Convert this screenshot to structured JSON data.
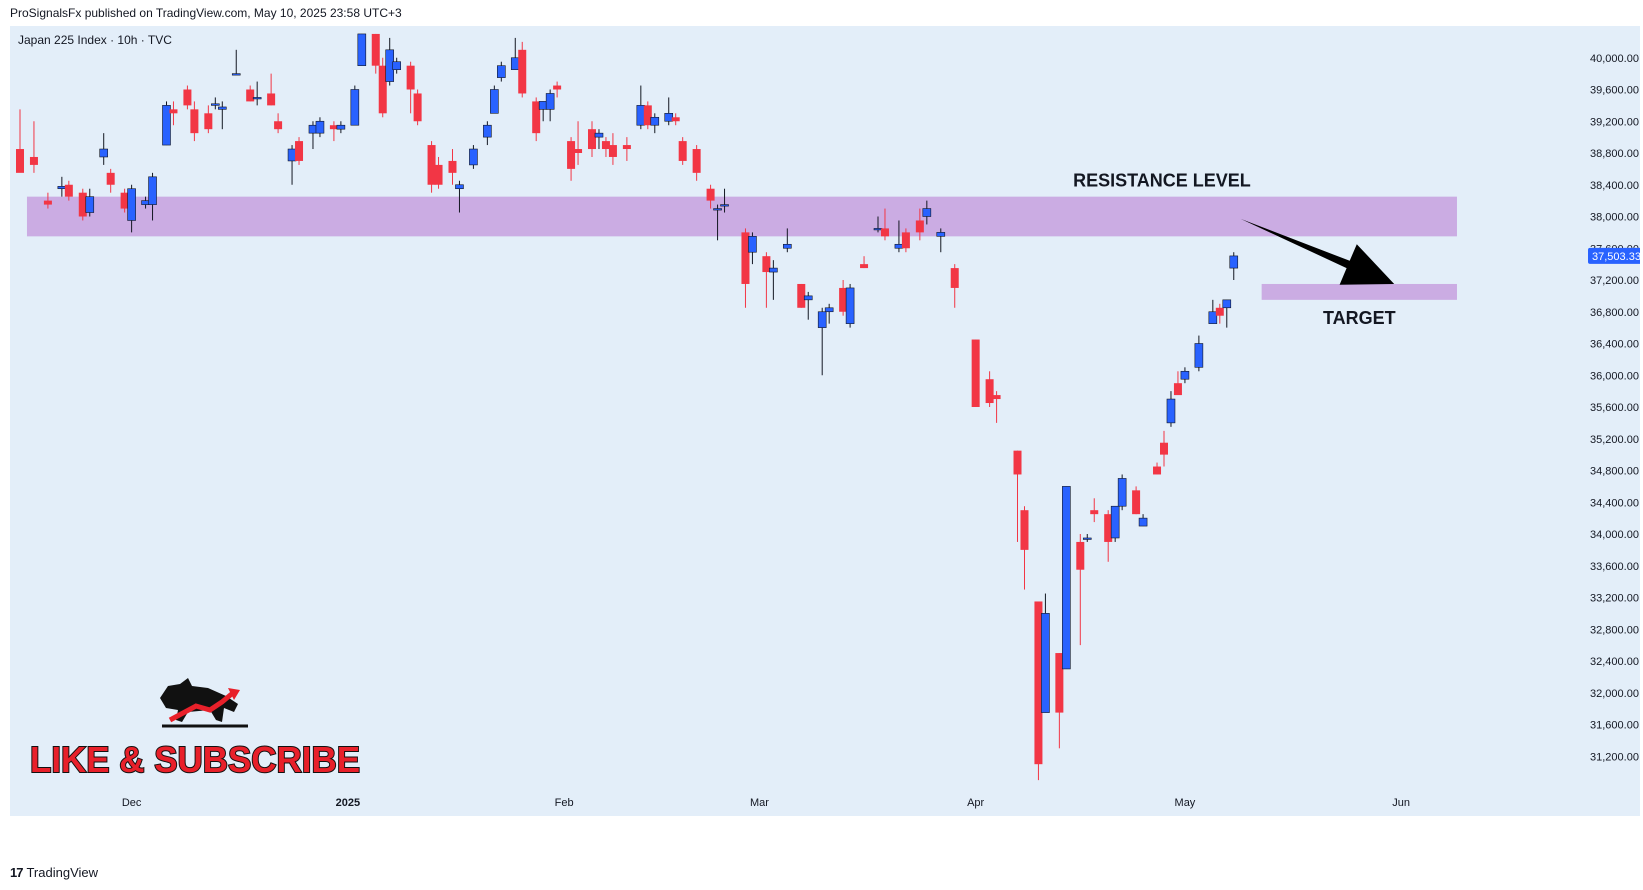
{
  "header": {
    "publisher_line": "ProSignalsFx published on TradingView.com, May 10, 2025 23:58 UTC+3"
  },
  "footer": {
    "brand": "TradingView",
    "brand_icon": "tradingview-logo-icon"
  },
  "colors": {
    "background": "#e3eef9",
    "up": "#2962ff",
    "down": "#f23645",
    "zone": "#c8a4e0",
    "price_tag": "#2962ff",
    "arrow": "#000000",
    "subscribe_red": "#e8202a"
  },
  "chart_data": {
    "type": "candlestick",
    "symbol_label": "Japan 225 Index · 10h · TVC",
    "ylim": [
      30800,
      40400
    ],
    "y_ticks": [
      31200,
      31600,
      32000,
      32400,
      32800,
      33200,
      33600,
      34000,
      34400,
      34800,
      35200,
      35600,
      36000,
      36400,
      36800,
      37200,
      37600,
      38000,
      38400,
      38800,
      39200,
      39600,
      40000
    ],
    "y_tick_labels": [
      "31,200.00",
      "31,600.00",
      "32,000.00",
      "32,400.00",
      "32,800.00",
      "33,200.00",
      "33,600.00",
      "34,000.00",
      "34,400.00",
      "34,800.00",
      "35,200.00",
      "35,600.00",
      "36,000.00",
      "36,400.00",
      "36,800.00",
      "37,200.00",
      "37,600.00",
      "38,000.00",
      "38,400.00",
      "38,800.00",
      "39,200.00",
      "39,600.00",
      "40,000.00"
    ],
    "x_range": [
      "2024-11-15",
      "2025-06-08"
    ],
    "x_ticks": [
      {
        "date": "2024-12-01",
        "label": "Dec"
      },
      {
        "date": "2025-01-01",
        "label": "2025"
      },
      {
        "date": "2025-02-01",
        "label": "Feb"
      },
      {
        "date": "2025-03-01",
        "label": "Mar"
      },
      {
        "date": "2025-04-01",
        "label": "Apr"
      },
      {
        "date": "2025-05-01",
        "label": "May"
      },
      {
        "date": "2025-06-01",
        "label": "Jun"
      }
    ],
    "current_price": 37503.33,
    "current_price_label": "37,503.33",
    "candles": [
      {
        "date": "2024-11-15",
        "o": 38850,
        "h": 39350,
        "l": 38600,
        "c": 38550
      },
      {
        "date": "2024-11-17",
        "o": 38750,
        "h": 39200,
        "l": 38550,
        "c": 38650
      },
      {
        "date": "2024-11-19",
        "o": 38200,
        "h": 38300,
        "l": 38100,
        "c": 38150
      },
      {
        "date": "2024-11-21",
        "o": 38350,
        "h": 38500,
        "l": 38250,
        "c": 38380
      },
      {
        "date": "2024-11-22",
        "o": 38400,
        "h": 38450,
        "l": 38200,
        "c": 38250
      },
      {
        "date": "2024-11-24",
        "o": 38300,
        "h": 38350,
        "l": 37950,
        "c": 38000
      },
      {
        "date": "2024-11-25",
        "o": 38050,
        "h": 38350,
        "l": 38000,
        "c": 38250
      },
      {
        "date": "2024-11-27",
        "o": 38750,
        "h": 39050,
        "l": 38650,
        "c": 38850
      },
      {
        "date": "2024-11-28",
        "o": 38550,
        "h": 38600,
        "l": 38300,
        "c": 38400
      },
      {
        "date": "2024-11-30",
        "o": 38300,
        "h": 38350,
        "l": 38050,
        "c": 38100
      },
      {
        "date": "2024-12-01",
        "o": 37950,
        "h": 38400,
        "l": 37800,
        "c": 38350
      },
      {
        "date": "2024-12-03",
        "o": 38150,
        "h": 38250,
        "l": 38100,
        "c": 38200
      },
      {
        "date": "2024-12-04",
        "o": 38150,
        "h": 38550,
        "l": 37950,
        "c": 38500
      },
      {
        "date": "2024-12-06",
        "o": 38900,
        "h": 39450,
        "l": 38900,
        "c": 39400
      },
      {
        "date": "2024-12-07",
        "o": 39350,
        "h": 39450,
        "l": 39150,
        "c": 39300
      },
      {
        "date": "2024-12-09",
        "o": 39600,
        "h": 39650,
        "l": 39350,
        "c": 39400
      },
      {
        "date": "2024-12-10",
        "o": 39350,
        "h": 39450,
        "l": 38950,
        "c": 39050
      },
      {
        "date": "2024-12-12",
        "o": 39300,
        "h": 39400,
        "l": 39050,
        "c": 39100
      },
      {
        "date": "2024-12-13",
        "o": 39400,
        "h": 39500,
        "l": 39350,
        "c": 39420
      },
      {
        "date": "2024-12-14",
        "o": 39350,
        "h": 39450,
        "l": 39100,
        "c": 39380
      },
      {
        "date": "2024-12-16",
        "o": 39800,
        "h": 40100,
        "l": 39800,
        "c": 39800
      },
      {
        "date": "2024-12-18",
        "o": 39600,
        "h": 39650,
        "l": 39450,
        "c": 39450
      },
      {
        "date": "2024-12-19",
        "o": 39500,
        "h": 39700,
        "l": 39400,
        "c": 39500
      },
      {
        "date": "2024-12-21",
        "o": 39550,
        "h": 39800,
        "l": 39400,
        "c": 39400
      },
      {
        "date": "2024-12-22",
        "o": 39200,
        "h": 39300,
        "l": 39050,
        "c": 39100
      },
      {
        "date": "2024-12-24",
        "o": 38700,
        "h": 38900,
        "l": 38400,
        "c": 38850
      },
      {
        "date": "2024-12-25",
        "o": 38950,
        "h": 39000,
        "l": 38650,
        "c": 38700
      },
      {
        "date": "2024-12-27",
        "o": 39050,
        "h": 39200,
        "l": 38850,
        "c": 39150
      },
      {
        "date": "2024-12-28",
        "o": 39050,
        "h": 39250,
        "l": 39000,
        "c": 39200
      },
      {
        "date": "2024-12-30",
        "o": 39150,
        "h": 39200,
        "l": 38950,
        "c": 39100
      },
      {
        "date": "2024-12-31",
        "o": 39100,
        "h": 39200,
        "l": 39050,
        "c": 39150
      },
      {
        "date": "2025-01-02",
        "o": 39150,
        "h": 39650,
        "l": 39150,
        "c": 39600
      },
      {
        "date": "2025-01-03",
        "o": 39900,
        "h": 40300,
        "l": 39900,
        "c": 40300
      },
      {
        "date": "2025-01-05",
        "o": 40300,
        "h": 40300,
        "l": 39800,
        "c": 39900
      },
      {
        "date": "2025-01-06",
        "o": 39900,
        "h": 40000,
        "l": 39250,
        "c": 39300
      },
      {
        "date": "2025-01-07",
        "o": 39700,
        "h": 40250,
        "l": 39650,
        "c": 40100
      },
      {
        "date": "2025-01-08",
        "o": 39850,
        "h": 40000,
        "l": 39800,
        "c": 39950
      },
      {
        "date": "2025-01-10",
        "o": 39900,
        "h": 39950,
        "l": 39300,
        "c": 39600
      },
      {
        "date": "2025-01-11",
        "o": 39550,
        "h": 39600,
        "l": 39150,
        "c": 39200
      },
      {
        "date": "2025-01-13",
        "o": 38900,
        "h": 38950,
        "l": 38300,
        "c": 38400
      },
      {
        "date": "2025-01-14",
        "o": 38650,
        "h": 38750,
        "l": 38350,
        "c": 38400
      },
      {
        "date": "2025-01-16",
        "o": 38700,
        "h": 38850,
        "l": 38400,
        "c": 38550
      },
      {
        "date": "2025-01-17",
        "o": 38350,
        "h": 38450,
        "l": 38050,
        "c": 38400
      },
      {
        "date": "2025-01-19",
        "o": 38650,
        "h": 38900,
        "l": 38600,
        "c": 38850
      },
      {
        "date": "2025-01-21",
        "o": 39000,
        "h": 39200,
        "l": 38900,
        "c": 39150
      },
      {
        "date": "2025-01-22",
        "o": 39300,
        "h": 39650,
        "l": 39300,
        "c": 39600
      },
      {
        "date": "2025-01-23",
        "o": 39750,
        "h": 39950,
        "l": 39700,
        "c": 39900
      },
      {
        "date": "2025-01-25",
        "o": 39850,
        "h": 40250,
        "l": 39850,
        "c": 40000
      },
      {
        "date": "2025-01-26",
        "o": 40100,
        "h": 40200,
        "l": 39500,
        "c": 39550
      },
      {
        "date": "2025-01-28",
        "o": 39450,
        "h": 39500,
        "l": 38950,
        "c": 39050
      },
      {
        "date": "2025-01-29",
        "o": 39350,
        "h": 39450,
        "l": 39200,
        "c": 39450
      },
      {
        "date": "2025-01-30",
        "o": 39350,
        "h": 39600,
        "l": 39200,
        "c": 39550
      },
      {
        "date": "2025-01-31",
        "o": 39650,
        "h": 39700,
        "l": 39500,
        "c": 39600
      },
      {
        "date": "2025-02-02",
        "o": 38950,
        "h": 39000,
        "l": 38450,
        "c": 38600
      },
      {
        "date": "2025-02-03",
        "o": 38850,
        "h": 39200,
        "l": 38650,
        "c": 38800
      },
      {
        "date": "2025-02-05",
        "o": 39100,
        "h": 39200,
        "l": 38750,
        "c": 38850
      },
      {
        "date": "2025-02-06",
        "o": 39000,
        "h": 39100,
        "l": 38850,
        "c": 39050
      },
      {
        "date": "2025-02-07",
        "o": 38950,
        "h": 39000,
        "l": 38750,
        "c": 38850
      },
      {
        "date": "2025-02-08",
        "o": 38900,
        "h": 39050,
        "l": 38650,
        "c": 38750
      },
      {
        "date": "2025-02-10",
        "o": 38900,
        "h": 39000,
        "l": 38700,
        "c": 38850
      },
      {
        "date": "2025-02-12",
        "o": 39150,
        "h": 39650,
        "l": 39100,
        "c": 39400
      },
      {
        "date": "2025-02-13",
        "o": 39400,
        "h": 39450,
        "l": 39100,
        "c": 39150
      },
      {
        "date": "2025-02-14",
        "o": 39150,
        "h": 39300,
        "l": 39050,
        "c": 39250
      },
      {
        "date": "2025-02-16",
        "o": 39200,
        "h": 39500,
        "l": 39150,
        "c": 39300
      },
      {
        "date": "2025-02-17",
        "o": 39250,
        "h": 39300,
        "l": 39150,
        "c": 39200
      },
      {
        "date": "2025-02-18",
        "o": 38950,
        "h": 39000,
        "l": 38650,
        "c": 38700
      },
      {
        "date": "2025-02-20",
        "o": 38850,
        "h": 38900,
        "l": 38450,
        "c": 38550
      },
      {
        "date": "2025-02-22",
        "o": 38350,
        "h": 38400,
        "l": 38100,
        "c": 38200
      },
      {
        "date": "2025-02-23",
        "o": 38100,
        "h": 38150,
        "l": 37700,
        "c": 38100
      },
      {
        "date": "2025-02-24",
        "o": 38150,
        "h": 38350,
        "l": 38050,
        "c": 38150
      },
      {
        "date": "2025-02-27",
        "o": 37800,
        "h": 37850,
        "l": 36850,
        "c": 37150
      },
      {
        "date": "2025-02-28",
        "o": 37550,
        "h": 37800,
        "l": 37400,
        "c": 37750
      },
      {
        "date": "2025-03-02",
        "o": 37500,
        "h": 37550,
        "l": 36850,
        "c": 37300
      },
      {
        "date": "2025-03-03",
        "o": 37300,
        "h": 37450,
        "l": 36950,
        "c": 37350
      },
      {
        "date": "2025-03-05",
        "o": 37600,
        "h": 37850,
        "l": 37550,
        "c": 37650
      },
      {
        "date": "2025-03-07",
        "o": 37150,
        "h": 37150,
        "l": 36850,
        "c": 36850
      },
      {
        "date": "2025-03-08",
        "o": 36950,
        "h": 37050,
        "l": 36700,
        "c": 37000
      },
      {
        "date": "2025-03-10",
        "o": 36600,
        "h": 36850,
        "l": 36000,
        "c": 36800
      },
      {
        "date": "2025-03-11",
        "o": 36800,
        "h": 36900,
        "l": 36650,
        "c": 36850
      },
      {
        "date": "2025-03-13",
        "o": 37100,
        "h": 37200,
        "l": 36750,
        "c": 36800
      },
      {
        "date": "2025-03-14",
        "o": 36650,
        "h": 37150,
        "l": 36600,
        "c": 37100
      },
      {
        "date": "2025-03-16",
        "o": 37400,
        "h": 37500,
        "l": 37350,
        "c": 37350
      },
      {
        "date": "2025-03-18",
        "o": 37850,
        "h": 38000,
        "l": 37800,
        "c": 37850
      },
      {
        "date": "2025-03-19",
        "o": 37850,
        "h": 38100,
        "l": 37700,
        "c": 37750
      },
      {
        "date": "2025-03-21",
        "o": 37600,
        "h": 37950,
        "l": 37550,
        "c": 37650
      },
      {
        "date": "2025-03-22",
        "o": 37800,
        "h": 37850,
        "l": 37550,
        "c": 37600
      },
      {
        "date": "2025-03-24",
        "o": 37950,
        "h": 38100,
        "l": 37700,
        "c": 37800
      },
      {
        "date": "2025-03-25",
        "o": 38000,
        "h": 38200,
        "l": 37900,
        "c": 38100
      },
      {
        "date": "2025-03-27",
        "o": 37750,
        "h": 37850,
        "l": 37550,
        "c": 37800
      },
      {
        "date": "2025-03-29",
        "o": 37350,
        "h": 37400,
        "l": 36850,
        "c": 37100
      },
      {
        "date": "2025-04-01",
        "o": 36450,
        "h": 36450,
        "l": 35600,
        "c": 35600
      },
      {
        "date": "2025-04-03",
        "o": 35950,
        "h": 36050,
        "l": 35600,
        "c": 35650
      },
      {
        "date": "2025-04-04",
        "o": 35750,
        "h": 35800,
        "l": 35400,
        "c": 35700
      },
      {
        "date": "2025-04-07",
        "o": 35050,
        "h": 35050,
        "l": 33900,
        "c": 34750
      },
      {
        "date": "2025-04-08",
        "o": 34300,
        "h": 34350,
        "l": 33300,
        "c": 33800
      },
      {
        "date": "2025-04-10",
        "o": 33150,
        "h": 33150,
        "l": 30900,
        "c": 31100
      },
      {
        "date": "2025-04-11",
        "o": 31750,
        "h": 33250,
        "l": 31750,
        "c": 33000
      },
      {
        "date": "2025-04-13",
        "o": 32500,
        "h": 32500,
        "l": 31300,
        "c": 31750
      },
      {
        "date": "2025-04-14",
        "o": 32300,
        "h": 34600,
        "l": 32300,
        "c": 34600
      },
      {
        "date": "2025-04-16",
        "o": 33900,
        "h": 34000,
        "l": 32600,
        "c": 33550
      },
      {
        "date": "2025-04-17",
        "o": 33950,
        "h": 34000,
        "l": 33900,
        "c": 33950
      },
      {
        "date": "2025-04-18",
        "o": 34300,
        "h": 34450,
        "l": 34150,
        "c": 34250
      },
      {
        "date": "2025-04-20",
        "o": 34250,
        "h": 34300,
        "l": 33650,
        "c": 33900
      },
      {
        "date": "2025-04-21",
        "o": 33950,
        "h": 34350,
        "l": 33900,
        "c": 34350
      },
      {
        "date": "2025-04-22",
        "o": 34350,
        "h": 34750,
        "l": 34300,
        "c": 34700
      },
      {
        "date": "2025-04-24",
        "o": 34550,
        "h": 34600,
        "l": 34250,
        "c": 34250
      },
      {
        "date": "2025-04-25",
        "o": 34100,
        "h": 34250,
        "l": 34100,
        "c": 34200
      },
      {
        "date": "2025-04-27",
        "o": 34850,
        "h": 34900,
        "l": 34750,
        "c": 34750
      },
      {
        "date": "2025-04-28",
        "o": 35150,
        "h": 35300,
        "l": 34850,
        "c": 35000
      },
      {
        "date": "2025-04-29",
        "o": 35400,
        "h": 35800,
        "l": 35350,
        "c": 35700
      },
      {
        "date": "2025-04-30",
        "o": 35900,
        "h": 36050,
        "l": 35800,
        "c": 35750
      },
      {
        "date": "2025-05-01",
        "o": 35950,
        "h": 36100,
        "l": 35900,
        "c": 36050
      },
      {
        "date": "2025-05-03",
        "o": 36100,
        "h": 36500,
        "l": 36050,
        "c": 36400
      },
      {
        "date": "2025-05-05",
        "o": 36650,
        "h": 36950,
        "l": 36650,
        "c": 36800
      },
      {
        "date": "2025-05-06",
        "o": 36850,
        "h": 36900,
        "l": 36650,
        "c": 36750
      },
      {
        "date": "2025-05-07",
        "o": 36850,
        "h": 36950,
        "l": 36600,
        "c": 36950
      },
      {
        "date": "2025-05-08",
        "o": 37350,
        "h": 37550,
        "l": 37200,
        "c": 37503.33
      }
    ],
    "annotations": {
      "resistance_zone": {
        "label": "RESISTANCE LEVEL",
        "y_low": 37750,
        "y_high": 38250,
        "x_start": "2024-11-16",
        "x_end": "2025-06-09"
      },
      "target_zone": {
        "label": "TARGET",
        "y_low": 36950,
        "y_high": 37150,
        "x_start": "2025-05-12",
        "x_end": "2025-06-09"
      },
      "arrow": {
        "from_date": "2025-05-09",
        "from_y": 37970,
        "to_date": "2025-05-31",
        "to_y": 37150
      }
    }
  },
  "promo": {
    "text": "LIKE & SUBSCRIBE",
    "icon": "bull-logo-icon"
  }
}
